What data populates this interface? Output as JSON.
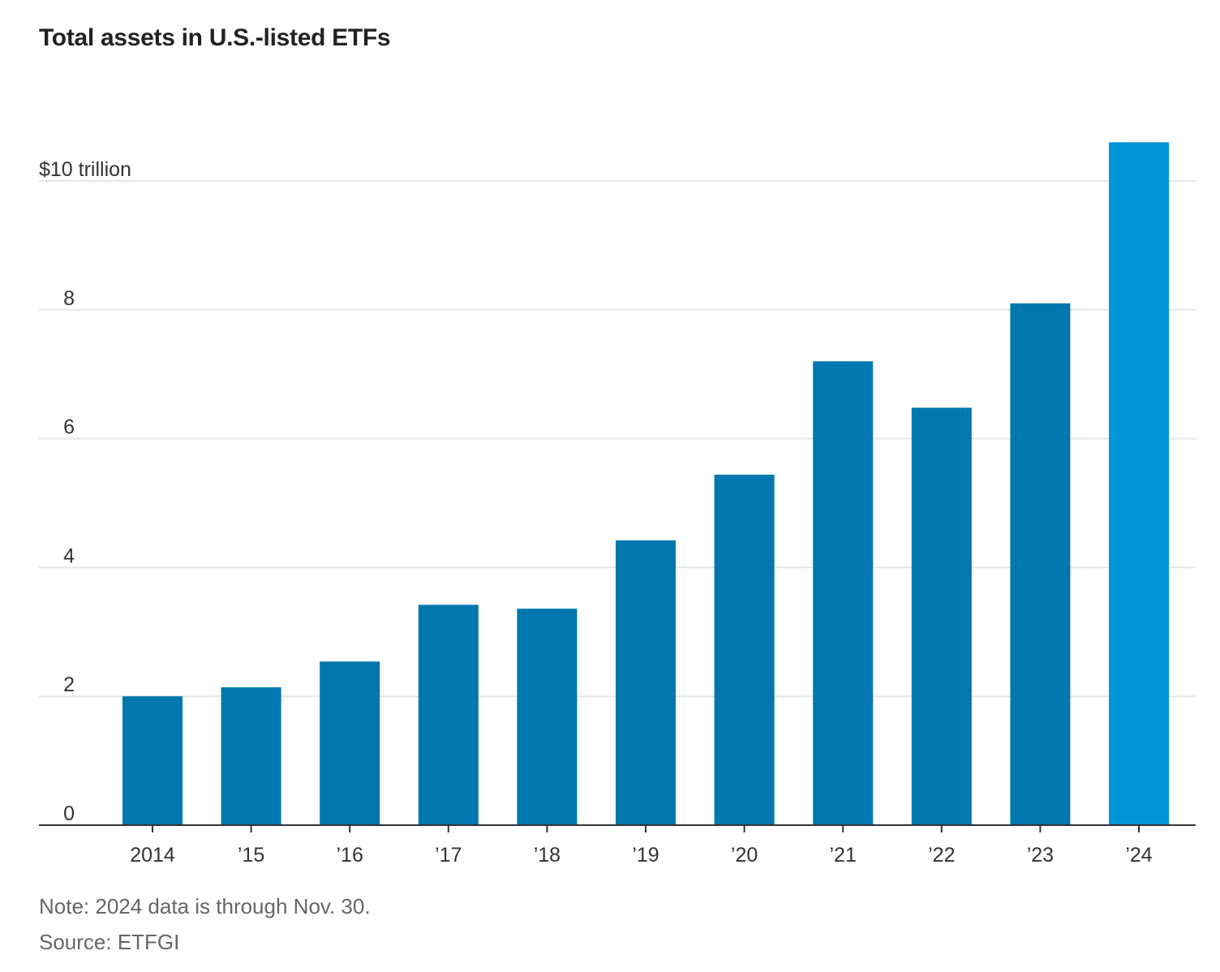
{
  "chart_data": {
    "type": "bar",
    "title": "Total assets in U.S.-listed ETFs",
    "categories": [
      "2014",
      "’15",
      "’16",
      "’17",
      "’18",
      "’19",
      "’20",
      "’21",
      "’22",
      "’23",
      "’24"
    ],
    "values": [
      2.0,
      2.14,
      2.54,
      3.42,
      3.36,
      4.42,
      5.44,
      7.2,
      6.48,
      8.1,
      10.6
    ],
    "ylim": [
      0,
      10.6
    ],
    "yticks": [
      0,
      2,
      4,
      6,
      8,
      10
    ],
    "ytick_labels": [
      "0",
      "2",
      "4",
      "6",
      "8",
      "$10 trillion"
    ],
    "grid": true,
    "colors": {
      "bar": "#0077AF",
      "highlight": "#0096D8",
      "grid": "#e6e6e6",
      "axis": "#333333"
    },
    "highlight_index": 10
  },
  "footer": {
    "note": "Note: 2024 data is through Nov. 30.",
    "source": "Source: ETFGI"
  }
}
